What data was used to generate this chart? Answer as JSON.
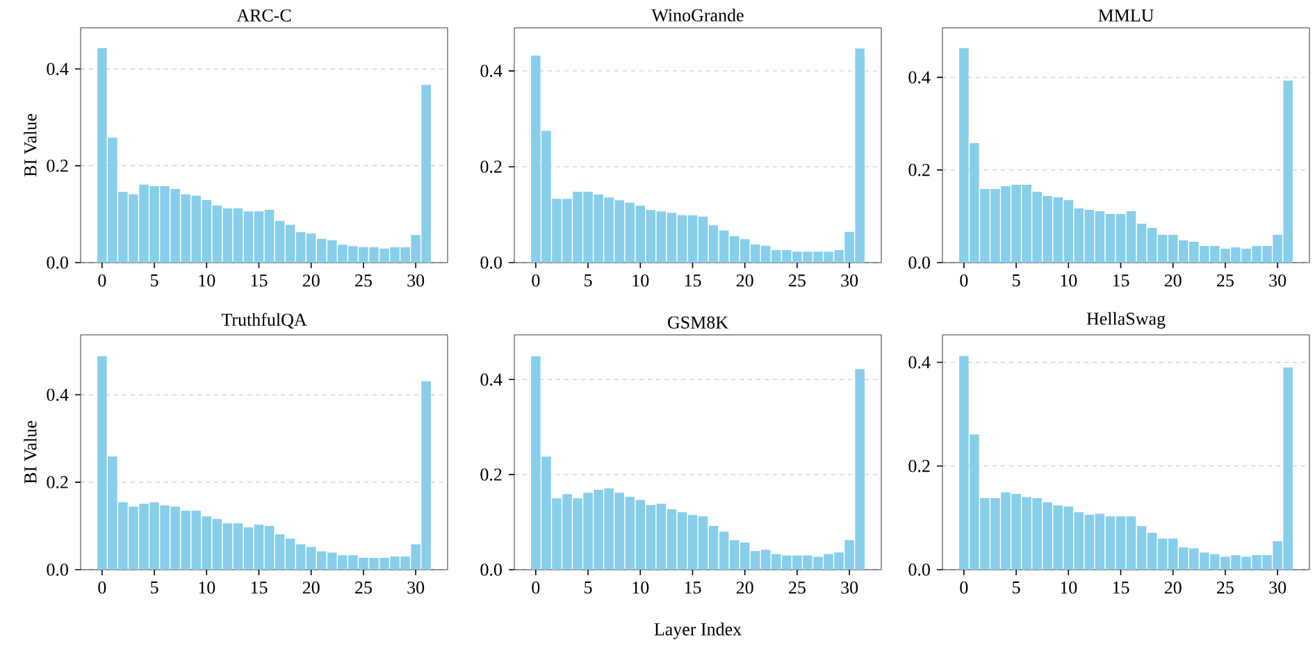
{
  "chart_data": [
    {
      "type": "bar",
      "title": "ARC-C",
      "ylabel": "BI Value",
      "color": "#87ceeb",
      "grid": "y",
      "xlim": [
        -2.05,
        33.05
      ],
      "ylim": [
        0,
        0.485
      ],
      "xticks": [
        0,
        5,
        10,
        15,
        20,
        25,
        30
      ],
      "yticks": [
        {
          "value": 0,
          "label": "0.0"
        },
        {
          "value": 0.2,
          "label": "0.2"
        },
        {
          "value": 0.4,
          "label": "0.4"
        }
      ],
      "x": [
        0,
        1,
        2,
        3,
        4,
        5,
        6,
        7,
        8,
        9,
        10,
        11,
        12,
        13,
        14,
        15,
        16,
        17,
        18,
        19,
        20,
        21,
        22,
        23,
        24,
        25,
        26,
        27,
        28,
        29,
        30,
        31
      ],
      "values": [
        0.443,
        0.258,
        0.146,
        0.141,
        0.161,
        0.158,
        0.158,
        0.152,
        0.141,
        0.138,
        0.129,
        0.118,
        0.112,
        0.112,
        0.106,
        0.106,
        0.109,
        0.086,
        0.078,
        0.063,
        0.06,
        0.049,
        0.046,
        0.037,
        0.034,
        0.032,
        0.032,
        0.029,
        0.032,
        0.032,
        0.057,
        0.367
      ]
    },
    {
      "type": "bar",
      "title": "WinoGrande",
      "color": "#87ceeb",
      "grid": "y",
      "xlim": [
        -2.05,
        33.05
      ],
      "ylim": [
        0,
        0.49
      ],
      "xticks": [
        0,
        5,
        10,
        15,
        20,
        25,
        30
      ],
      "yticks": [
        {
          "value": 0,
          "label": "0.0"
        },
        {
          "value": 0.2,
          "label": "0.2"
        },
        {
          "value": 0.4,
          "label": "0.4"
        }
      ],
      "x": [
        0,
        1,
        2,
        3,
        4,
        5,
        6,
        7,
        8,
        9,
        10,
        11,
        12,
        13,
        14,
        15,
        16,
        17,
        18,
        19,
        20,
        21,
        22,
        23,
        24,
        25,
        26,
        27,
        28,
        29,
        30,
        31
      ],
      "values": [
        0.432,
        0.275,
        0.133,
        0.133,
        0.148,
        0.148,
        0.142,
        0.136,
        0.13,
        0.125,
        0.119,
        0.11,
        0.107,
        0.104,
        0.099,
        0.099,
        0.096,
        0.078,
        0.067,
        0.055,
        0.049,
        0.038,
        0.035,
        0.026,
        0.026,
        0.023,
        0.023,
        0.023,
        0.023,
        0.026,
        0.064,
        0.447
      ]
    },
    {
      "type": "bar",
      "title": "MMLU",
      "color": "#87ceeb",
      "grid": "y",
      "xlim": [
        -2.05,
        33.05
      ],
      "ylim": [
        0,
        0.507
      ],
      "xticks": [
        0,
        5,
        10,
        15,
        20,
        25,
        30
      ],
      "yticks": [
        {
          "value": 0,
          "label": "0.0"
        },
        {
          "value": 0.2,
          "label": "0.2"
        },
        {
          "value": 0.4,
          "label": "0.4"
        }
      ],
      "x": [
        0,
        1,
        2,
        3,
        4,
        5,
        6,
        7,
        8,
        9,
        10,
        11,
        12,
        13,
        14,
        15,
        16,
        17,
        18,
        19,
        20,
        21,
        22,
        23,
        24,
        25,
        26,
        27,
        28,
        29,
        30,
        31
      ],
      "values": [
        0.463,
        0.258,
        0.159,
        0.159,
        0.165,
        0.168,
        0.168,
        0.153,
        0.144,
        0.141,
        0.135,
        0.117,
        0.114,
        0.111,
        0.105,
        0.105,
        0.111,
        0.084,
        0.075,
        0.06,
        0.06,
        0.048,
        0.045,
        0.036,
        0.036,
        0.03,
        0.033,
        0.03,
        0.036,
        0.036,
        0.06,
        0.393
      ]
    },
    {
      "type": "bar",
      "title": "TruthfulQA",
      "ylabel": "BI Value",
      "color": "#87ceeb",
      "grid": "y",
      "xlim": [
        -2.05,
        33.05
      ],
      "ylim": [
        0,
        0.537
      ],
      "xticks": [
        0,
        5,
        10,
        15,
        20,
        25,
        30
      ],
      "yticks": [
        {
          "value": 0,
          "label": "0.0"
        },
        {
          "value": 0.2,
          "label": "0.2"
        },
        {
          "value": 0.4,
          "label": "0.4"
        }
      ],
      "x": [
        0,
        1,
        2,
        3,
        4,
        5,
        6,
        7,
        8,
        9,
        10,
        11,
        12,
        13,
        14,
        15,
        16,
        17,
        18,
        19,
        20,
        21,
        22,
        23,
        24,
        25,
        26,
        27,
        28,
        29,
        30,
        31
      ],
      "values": [
        0.488,
        0.259,
        0.154,
        0.144,
        0.151,
        0.154,
        0.147,
        0.144,
        0.135,
        0.135,
        0.122,
        0.116,
        0.106,
        0.106,
        0.097,
        0.103,
        0.1,
        0.081,
        0.071,
        0.058,
        0.052,
        0.042,
        0.039,
        0.033,
        0.033,
        0.027,
        0.027,
        0.027,
        0.03,
        0.03,
        0.058,
        0.431
      ]
    },
    {
      "type": "bar",
      "title": "GSM8K",
      "xlabel": "Layer Index",
      "color": "#87ceeb",
      "grid": "y",
      "xlim": [
        -2.05,
        33.05
      ],
      "ylim": [
        0,
        0.494
      ],
      "xticks": [
        0,
        5,
        10,
        15,
        20,
        25,
        30
      ],
      "yticks": [
        {
          "value": 0,
          "label": "0.0"
        },
        {
          "value": 0.2,
          "label": "0.2"
        },
        {
          "value": 0.4,
          "label": "0.4"
        }
      ],
      "x": [
        0,
        1,
        2,
        3,
        4,
        5,
        6,
        7,
        8,
        9,
        10,
        11,
        12,
        13,
        14,
        15,
        16,
        17,
        18,
        19,
        20,
        21,
        22,
        23,
        24,
        25,
        26,
        27,
        28,
        29,
        30,
        31
      ],
      "values": [
        0.449,
        0.238,
        0.15,
        0.159,
        0.15,
        0.162,
        0.168,
        0.171,
        0.162,
        0.153,
        0.147,
        0.136,
        0.139,
        0.127,
        0.121,
        0.115,
        0.112,
        0.092,
        0.08,
        0.062,
        0.057,
        0.039,
        0.042,
        0.033,
        0.03,
        0.03,
        0.03,
        0.027,
        0.033,
        0.036,
        0.062,
        0.422
      ]
    },
    {
      "type": "bar",
      "title": "HellaSwag",
      "color": "#87ceeb",
      "grid": "y",
      "xlim": [
        -2.05,
        33.05
      ],
      "ylim": [
        0,
        0.453
      ],
      "xticks": [
        0,
        5,
        10,
        15,
        20,
        25,
        30
      ],
      "yticks": [
        {
          "value": 0,
          "label": "0.0"
        },
        {
          "value": 0.2,
          "label": "0.2"
        },
        {
          "value": 0.4,
          "label": "0.4"
        }
      ],
      "x": [
        0,
        1,
        2,
        3,
        4,
        5,
        6,
        7,
        8,
        9,
        10,
        11,
        12,
        13,
        14,
        15,
        16,
        17,
        18,
        19,
        20,
        21,
        22,
        23,
        24,
        25,
        26,
        27,
        28,
        29,
        30,
        31
      ],
      "values": [
        0.412,
        0.261,
        0.138,
        0.138,
        0.149,
        0.146,
        0.14,
        0.138,
        0.13,
        0.124,
        0.122,
        0.111,
        0.106,
        0.108,
        0.103,
        0.103,
        0.103,
        0.084,
        0.071,
        0.06,
        0.06,
        0.043,
        0.041,
        0.033,
        0.03,
        0.025,
        0.028,
        0.025,
        0.028,
        0.028,
        0.055,
        0.39
      ]
    }
  ]
}
